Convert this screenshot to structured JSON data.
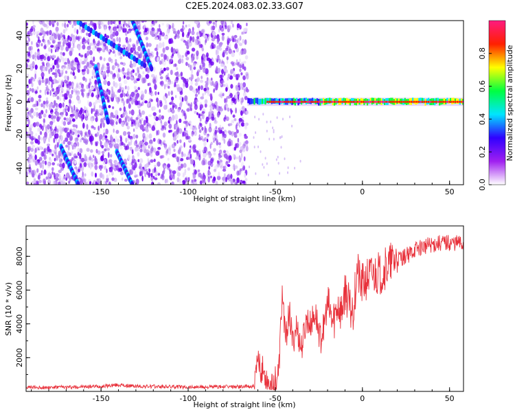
{
  "title": "C2E5.2024.083.02.33.G07",
  "chart_data": [
    {
      "type": "heatmap",
      "title": "",
      "xlabel": "Height of straight line (km)",
      "ylabel": "Frequency (Hz)",
      "xlim": [
        -193,
        58
      ],
      "ylim": [
        -50,
        49
      ],
      "x_ticks": [
        -150,
        -100,
        -50,
        0,
        50
      ],
      "y_ticks": [
        -40,
        -20,
        0,
        20,
        40
      ],
      "colorbar": {
        "label": "Normalized spectral amplitude",
        "range": [
          0,
          1
        ],
        "ticks": [
          0.0,
          0.2,
          0.4,
          0.6,
          0.8
        ],
        "colormap": [
          "#ffffff",
          "#a020f0",
          "#3000ff",
          "#00e5ff",
          "#00ff40",
          "#ffff00",
          "#ff2000",
          "#ff1a80"
        ]
      },
      "features": {
        "noise_region_x": [
          -193,
          -66
        ],
        "signal_band_x": [
          -66,
          58
        ],
        "signal_band_frequency_hz": 0,
        "diagonal_streaks": [
          {
            "from": [
              -163,
              48
            ],
            "to": [
              -125,
              22
            ]
          },
          {
            "from": [
              -132,
              49
            ],
            "to": [
              -121,
              20
            ]
          },
          {
            "from": [
              -153,
              21
            ],
            "to": [
              -146,
              -12
            ]
          },
          {
            "from": [
              -173,
              -27
            ],
            "to": [
              -163,
              -50
            ]
          },
          {
            "from": [
              -141,
              -30
            ],
            "to": [
              -132,
              -50
            ]
          }
        ]
      }
    },
    {
      "type": "line",
      "title": "",
      "xlabel": "Height of straight line (km)",
      "ylabel": "SNR (10 * v/v)",
      "xlim": [
        -193,
        58
      ],
      "ylim": [
        0,
        9800
      ],
      "x_ticks": [
        -150,
        -100,
        -50,
        0,
        50
      ],
      "y_ticks": [
        2000,
        4000,
        6000,
        8000
      ],
      "series": [
        {
          "color": "#e8303a",
          "x": [
            -193,
            -170,
            -150,
            -140,
            -130,
            -110,
            -90,
            -70,
            -62,
            -60,
            -56,
            -52,
            -48,
            -46,
            -44,
            -42,
            -40,
            -38,
            -35,
            -32,
            -30,
            -27,
            -24,
            -20,
            -17,
            -14,
            -12,
            -10,
            -7,
            -5,
            -3,
            -1,
            1,
            3,
            6,
            10,
            15,
            20,
            25,
            30,
            35,
            40,
            45,
            50,
            55,
            58
          ],
          "y": [
            230,
            250,
            300,
            380,
            300,
            270,
            260,
            280,
            300,
            1700,
            1000,
            400,
            1100,
            5900,
            3000,
            4800,
            2800,
            3900,
            2500,
            4300,
            3900,
            4600,
            3000,
            5100,
            4000,
            5200,
            4600,
            6100,
            4700,
            4900,
            7300,
            6200,
            6500,
            6800,
            6900,
            7000,
            7400,
            7900,
            8000,
            8400,
            8600,
            8700,
            8800,
            8800,
            8800,
            8700
          ]
        }
      ]
    }
  ]
}
